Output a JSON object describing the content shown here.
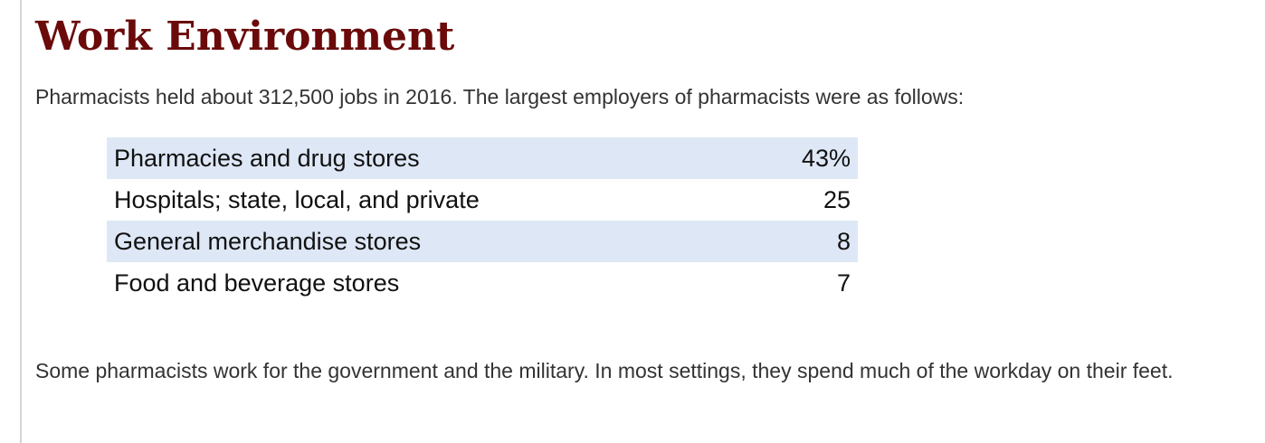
{
  "section": {
    "title": "Work Environment",
    "intro": "Pharmacists held about 312,500 jobs in 2016. The largest employers of pharmacists were as follows:",
    "employers": [
      {
        "name": "Pharmacies and drug stores",
        "value": "43%"
      },
      {
        "name": "Hospitals; state, local, and private",
        "value": "25"
      },
      {
        "name": "General merchandise stores",
        "value": "8"
      },
      {
        "name": "Food and beverage stores",
        "value": "7"
      }
    ],
    "outro": "Some pharmacists work for the government and the military. In most settings, they spend much of the workday on their feet."
  },
  "colors": {
    "title": "#6a0a0a",
    "row_shade": "#dee7f5",
    "body_text": "#333333"
  }
}
